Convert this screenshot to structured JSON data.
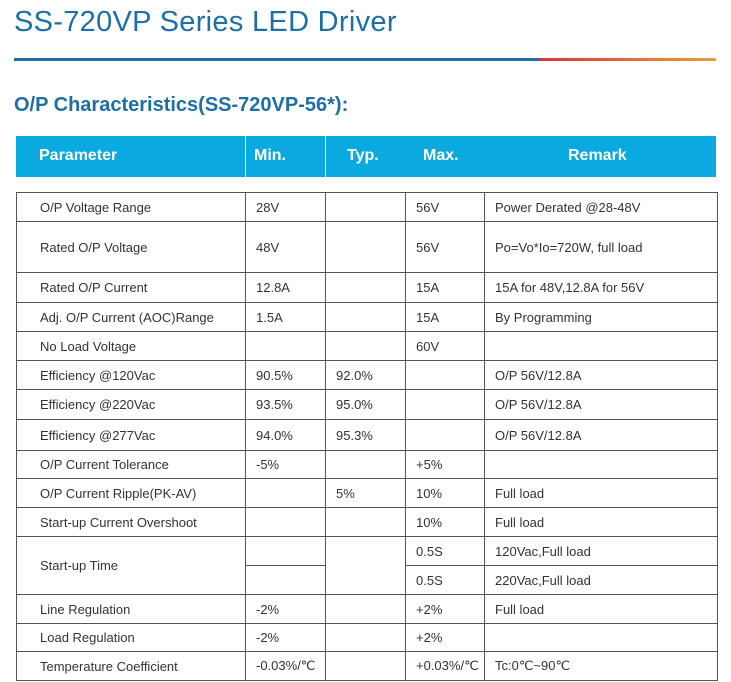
{
  "title": "SS-720VP Series LED Driver",
  "subtitle": "O/P Characteristics(SS-720VP-56*):",
  "headers": {
    "parameter": "Parameter",
    "min": "Min.",
    "typ": "Typ.",
    "max": "Max.",
    "remark": "Remark"
  },
  "rows": [
    {
      "parameter": "O/P Voltage Range",
      "min": "28V",
      "typ": "",
      "max": "56V",
      "remark": "Power Derated @28-48V"
    },
    {
      "parameter": "Rated O/P Voltage",
      "min": "48V",
      "typ": "",
      "max": "56V",
      "remark": "Po=Vo*Io=720W, full load"
    },
    {
      "parameter": "Rated O/P Current",
      "min": "12.8A",
      "typ": "",
      "max": "15A",
      "remark": "15A for 48V,12.8A for 56V"
    },
    {
      "parameter": "Adj. O/P Current (AOC)Range",
      "min": "1.5A",
      "typ": "",
      "max": "15A",
      "remark": "By Programming"
    },
    {
      "parameter": "No Load Voltage",
      "min": "",
      "typ": "",
      "max": "60V",
      "remark": ""
    },
    {
      "parameter": "Efficiency @120Vac",
      "min": "90.5%",
      "typ": "92.0%",
      "max": "",
      "remark": "O/P 56V/12.8A"
    },
    {
      "parameter": "Efficiency @220Vac",
      "min": "93.5%",
      "typ": "95.0%",
      "max": "",
      "remark": "O/P 56V/12.8A"
    },
    {
      "parameter": "Efficiency @277Vac",
      "min": "94.0%",
      "typ": "95.3%",
      "max": "",
      "remark": "O/P 56V/12.8A"
    },
    {
      "parameter": "O/P Current Tolerance",
      "min": "-5%",
      "typ": "",
      "max": "+5%",
      "remark": ""
    },
    {
      "parameter": "O/P Current Ripple(PK-AV)",
      "min": "",
      "typ": "5%",
      "max": "10%",
      "remark": "Full load"
    },
    {
      "parameter": "Start-up Current Overshoot",
      "min": "",
      "typ": "",
      "max": "10%",
      "remark": "Full load"
    }
  ],
  "startup": {
    "parameter": "Start-up Time",
    "max1": "0.5S",
    "remark1": "120Vac,Full load",
    "max2": "0.5S",
    "remark2": "220Vac,Full load"
  },
  "rows2": [
    {
      "parameter": "Line Regulation",
      "min": "-2%",
      "typ": "",
      "max": "+2%",
      "remark": "Full load"
    },
    {
      "parameter": "Load Regulation",
      "min": "-2%",
      "typ": "",
      "max": "+2%",
      "remark": ""
    },
    {
      "parameter": "Temperature Coefficient",
      "min": "-0.03%/℃",
      "typ": "",
      "max": "+0.03%/℃",
      "remark": "Tc:0℃~90℃"
    }
  ]
}
